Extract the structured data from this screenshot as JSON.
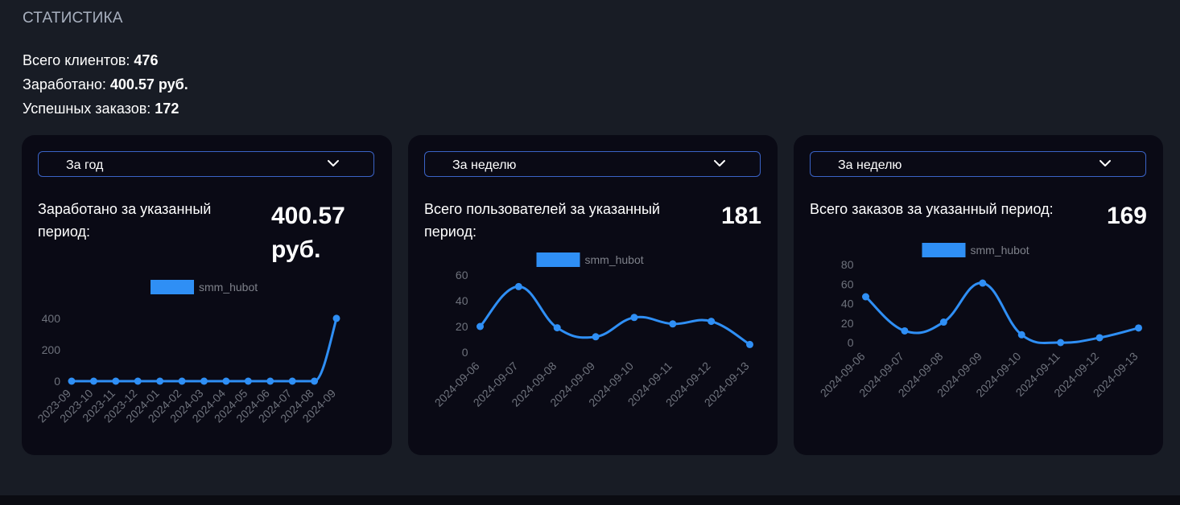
{
  "header": {
    "title": "СТАТИСТИКА"
  },
  "summary": {
    "clients_label": "Всего клиентов:",
    "clients_value": "476",
    "earned_label": "Заработано:",
    "earned_value": "400.57 руб.",
    "orders_label": "Успешных заказов:",
    "orders_value": "172"
  },
  "cards": [
    {
      "period": "За год",
      "label": "Заработано за указанный период:",
      "value": "400.57 руб.",
      "legend": "smm_hubot"
    },
    {
      "period": "За неделю",
      "label": "Всего пользователей за указанный период:",
      "value": "181",
      "legend": "smm_hubot"
    },
    {
      "period": "За неделю",
      "label": "Всего заказов за указанный период:",
      "value": "169",
      "legend": "smm_hubot"
    }
  ],
  "colors": {
    "accent": "#2f8ff5",
    "card_bg": "#0a0a15",
    "page_bg": "#181c25",
    "select_border": "#3a63c6"
  },
  "icons": {
    "select_toggle": "chevron-down-icon"
  },
  "chart_data": [
    {
      "type": "line",
      "categories": [
        "2023-09",
        "2023-10",
        "2023-11",
        "2023-12",
        "2024-01",
        "2024-02",
        "2024-03",
        "2024-04",
        "2024-05",
        "2024-06",
        "2024-07",
        "2024-08",
        "2024-09"
      ],
      "series": [
        {
          "name": "smm_hubot",
          "values": [
            0,
            0,
            0,
            0,
            0,
            0,
            0,
            0,
            0,
            0,
            0,
            0,
            400.57
          ]
        }
      ],
      "yticks": [
        0,
        200,
        400
      ],
      "ylim": [
        0,
        400
      ],
      "legend": "top",
      "grid": false
    },
    {
      "type": "line",
      "categories": [
        "2024-09-06",
        "2024-09-07",
        "2024-09-08",
        "2024-09-09",
        "2024-09-10",
        "2024-09-11",
        "2024-09-12",
        "2024-09-13"
      ],
      "series": [
        {
          "name": "smm_hubot",
          "values": [
            20,
            51,
            19,
            12,
            27,
            22,
            24,
            6
          ]
        }
      ],
      "yticks": [
        0,
        20,
        40,
        60
      ],
      "ylim": [
        0,
        60
      ],
      "legend": "top",
      "grid": false
    },
    {
      "type": "line",
      "categories": [
        "2024-09-06",
        "2024-09-07",
        "2024-09-08",
        "2024-09-09",
        "2024-09-10",
        "2024-09-11",
        "2024-09-12",
        "2024-09-13"
      ],
      "series": [
        {
          "name": "smm_hubot",
          "values": [
            47,
            12,
            21,
            61,
            8,
            0,
            5,
            15
          ]
        }
      ],
      "yticks": [
        0,
        20,
        40,
        60,
        80
      ],
      "ylim": [
        0,
        80
      ],
      "legend": "top",
      "grid": false
    }
  ]
}
